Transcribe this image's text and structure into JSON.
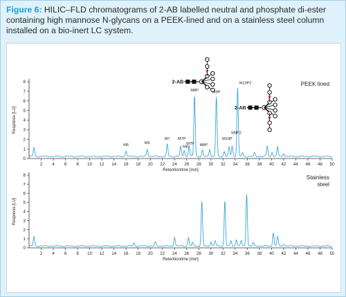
{
  "figure": {
    "label": "Figure 6:",
    "caption": "HILIC–FLD chromatograms of 2-AB labelled neutral and phosphate di-ester containing high mannose N-glycans on a PEEK-lined and on a stainless steel column installed on a bio-inert LC system."
  },
  "chart_data": [
    {
      "type": "line",
      "panel_label": "PEEK  lined",
      "xlabel": "Retentiontime [min]",
      "ylabel": "Response [LU]",
      "xlim": [
        0,
        50
      ],
      "ylim": [
        0,
        8
      ],
      "xticks": [
        2,
        4,
        6,
        8,
        10,
        12,
        14,
        16,
        18,
        20,
        22,
        24,
        26,
        28,
        30,
        32,
        34,
        36,
        38,
        40,
        42,
        44,
        46,
        48,
        50
      ],
      "yticks": [
        0,
        1,
        2,
        3,
        4,
        5,
        6,
        7,
        8
      ],
      "baseline": 0.22,
      "peaks": [
        {
          "x": 0.8,
          "y": 1.15
        },
        {
          "x": 16.0,
          "y": 0.8
        },
        {
          "x": 19.5,
          "y": 1.0
        },
        {
          "x": 22.8,
          "y": 1.5
        },
        {
          "x": 25.0,
          "y": 1.25
        },
        {
          "x": 25.6,
          "y": 0.9
        },
        {
          "x": 26.4,
          "y": 1.35
        },
        {
          "x": 27.3,
          "y": 6.6
        },
        {
          "x": 28.6,
          "y": 0.85
        },
        {
          "x": 29.8,
          "y": 1.0
        },
        {
          "x": 30.9,
          "y": 6.4
        },
        {
          "x": 32.2,
          "y": 0.75
        },
        {
          "x": 33.0,
          "y": 1.15
        },
        {
          "x": 33.5,
          "y": 1.3
        },
        {
          "x": 34.4,
          "y": 7.4
        },
        {
          "x": 35.2,
          "y": 0.6
        },
        {
          "x": 37.2,
          "y": 0.55
        },
        {
          "x": 39.3,
          "y": 1.3
        },
        {
          "x": 40.1,
          "y": 0.7
        },
        {
          "x": 41.0,
          "y": 1.2
        },
        {
          "x": 42.0,
          "y": 0.55
        }
      ],
      "annotations": [
        {
          "text": "M5",
          "x": 16.0,
          "y": 1.3
        },
        {
          "text": "M6",
          "x": 19.5,
          "y": 1.5
        },
        {
          "text": "M7",
          "x": 22.8,
          "y": 1.95
        },
        {
          "text": "M7P",
          "x": 25.2,
          "y": 1.95
        },
        {
          "text": "M8",
          "x": 25.8,
          "y": 1.1
        },
        {
          "text": "M7P",
          "x": 26.6,
          "y": 1.45
        },
        {
          "text": "M8P",
          "x": 27.3,
          "y": 7.0
        },
        {
          "text": "M8P",
          "x": 28.8,
          "y": 1.3
        },
        {
          "text": "M9P",
          "x": 30.9,
          "y": 6.8
        },
        {
          "text": "M10P",
          "x": 32.7,
          "y": 1.95
        },
        {
          "text": "M9P2",
          "x": 34.2,
          "y": 2.55
        },
        {
          "text": "M10P2",
          "x": 35.7,
          "y": 7.75
        }
      ],
      "structure_labels": [
        {
          "text": "2-AB",
          "x": 25.5,
          "y": 8.0
        },
        {
          "text": "2-AB",
          "x": 35.8,
          "y": 5.3
        }
      ],
      "structure_phosphate": "P"
    },
    {
      "type": "line",
      "panel_label": "Stainless\nsteel",
      "xlabel": "Retentiontime [min]",
      "ylabel": "Response [LU]",
      "xlim": [
        0,
        50
      ],
      "ylim": [
        0,
        8
      ],
      "xticks": [
        2,
        4,
        6,
        8,
        10,
        12,
        14,
        16,
        18,
        20,
        22,
        24,
        26,
        28,
        30,
        32,
        34,
        36,
        38,
        40,
        42,
        44,
        46,
        48,
        50
      ],
      "yticks": [
        0,
        1,
        2,
        3,
        4,
        5,
        6,
        7,
        8
      ],
      "baseline": 0.2,
      "peaks": [
        {
          "x": 0.8,
          "y": 1.25
        },
        {
          "x": 17.3,
          "y": 0.55
        },
        {
          "x": 20.8,
          "y": 0.6
        },
        {
          "x": 24.0,
          "y": 1.2
        },
        {
          "x": 26.3,
          "y": 1.15
        },
        {
          "x": 27.0,
          "y": 0.55
        },
        {
          "x": 28.5,
          "y": 5.1
        },
        {
          "x": 30.0,
          "y": 0.7
        },
        {
          "x": 30.7,
          "y": 0.8
        },
        {
          "x": 32.3,
          "y": 5.2
        },
        {
          "x": 33.3,
          "y": 0.8
        },
        {
          "x": 34.2,
          "y": 0.95
        },
        {
          "x": 35.0,
          "y": 0.8
        },
        {
          "x": 35.9,
          "y": 6.0
        },
        {
          "x": 37.0,
          "y": 0.55
        },
        {
          "x": 40.3,
          "y": 1.7
        },
        {
          "x": 41.0,
          "y": 1.25
        },
        {
          "x": 42.0,
          "y": 0.45
        }
      ]
    }
  ]
}
